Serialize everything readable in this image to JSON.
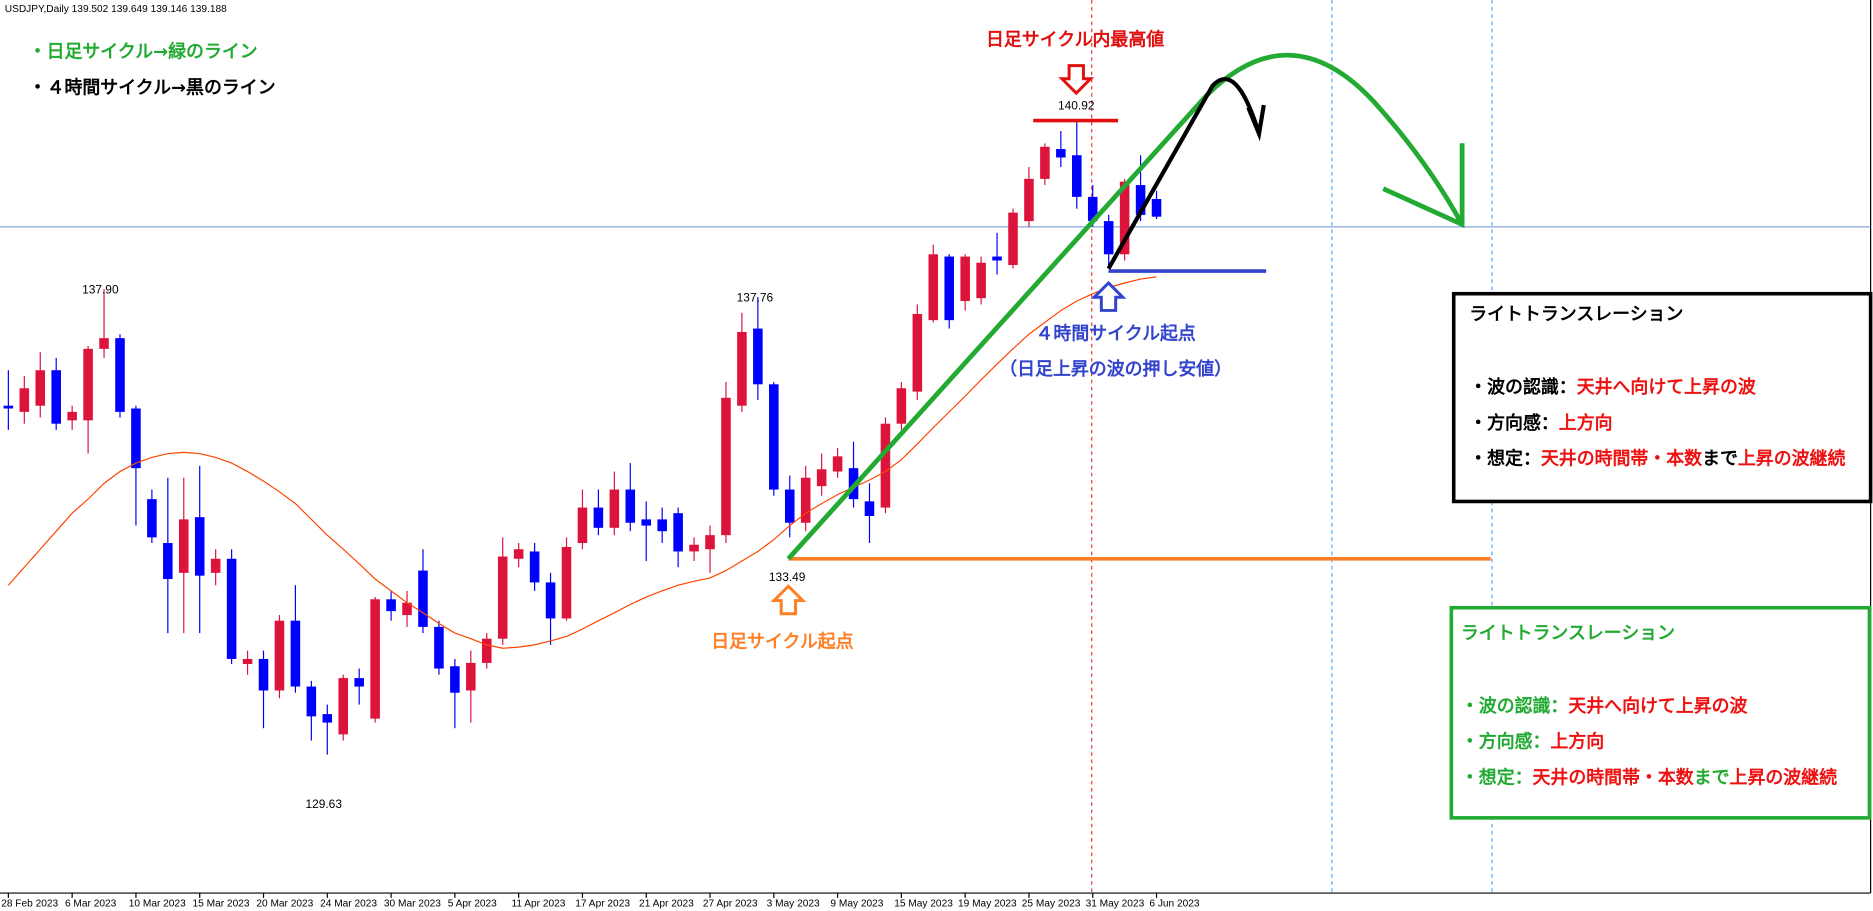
{
  "chart_data": {
    "type": "candlestick",
    "header": "USDJPY,Daily  139.502 139.649 139.146 139.188",
    "x": [
      "28 Feb 2023",
      null,
      null,
      null,
      "6 Mar 2023",
      null,
      null,
      null,
      "10 Mar 2023",
      null,
      null,
      null,
      "15 Mar 2023",
      null,
      null,
      null,
      "20 Mar 2023",
      null,
      null,
      null,
      "24 Mar 2023",
      null,
      null,
      null,
      "30 Mar 2023",
      null,
      null,
      null,
      "5 Apr 2023",
      null,
      null,
      null,
      "11 Apr 2023",
      null,
      null,
      null,
      "17 Apr 2023",
      null,
      null,
      null,
      "21 Apr 2023",
      null,
      null,
      null,
      "27 Apr 2023",
      null,
      null,
      null,
      "3 May 2023",
      null,
      null,
      null,
      "9 May 2023",
      null,
      null,
      null,
      "15 May 2023",
      null,
      null,
      null,
      "19 May 2023",
      null,
      null,
      null,
      "25 May 2023",
      null,
      null,
      null,
      "31 May 2023",
      null,
      null,
      null,
      "6 Jun 2023"
    ],
    "open": [
      135.83,
      135.72,
      135.83,
      136.46,
      135.57,
      135.57,
      136.84,
      137.03,
      135.78,
      134.17,
      133.39,
      132.86,
      133.85,
      132.86,
      133.11,
      131.24,
      131.33,
      130.77,
      132.01,
      130.84,
      130.35,
      129.99,
      130.99,
      130.27,
      132.39,
      132.11,
      132.9,
      131.9,
      131.2,
      130.77,
      131.26,
      131.69,
      133.11,
      133.24,
      132.69,
      132.05,
      133.39,
      134.02,
      133.66,
      134.34,
      133.81,
      133.81,
      133.92,
      133.24,
      133.28,
      133.53,
      135.83,
      137.2,
      136.21,
      134.34,
      133.75,
      134.4,
      134.66,
      134.72,
      134.13,
      134.02,
      135.51,
      136.08,
      137.35,
      138.48,
      137.69,
      137.74,
      138.48,
      138.33,
      139.11,
      139.86,
      140.39,
      140.28,
      139.54,
      139.11,
      138.52,
      139.75,
      139.502
    ],
    "high": [
      136.46,
      136.36,
      136.78,
      136.68,
      135.83,
      136.89,
      137.9,
      137.1,
      135.83,
      134.34,
      134.55,
      134.55,
      134.76,
      133.28,
      133.28,
      131.48,
      131.48,
      132.11,
      132.64,
      130.94,
      130.52,
      131.05,
      131.16,
      132.43,
      132.54,
      132.54,
      133.28,
      132.01,
      131.33,
      131.48,
      131.79,
      133.49,
      133.39,
      133.39,
      132.86,
      133.49,
      134.34,
      134.34,
      134.66,
      134.81,
      134.13,
      134.02,
      134.02,
      133.49,
      133.7,
      136.25,
      137.48,
      137.76,
      136.25,
      134.59,
      134.76,
      134.98,
      135.08,
      135.19,
      134.45,
      135.62,
      136.25,
      137.63,
      138.69,
      138.52,
      138.52,
      138.48,
      138.9,
      139.33,
      140.07,
      140.49,
      140.71,
      140.92,
      139.75,
      139.22,
      139.86,
      140.28,
      139.649
    ],
    "low": [
      135.4,
      135.51,
      135.62,
      135.4,
      135.4,
      134.98,
      136.68,
      135.62,
      133.7,
      133.39,
      131.79,
      131.79,
      131.79,
      132.64,
      131.24,
      131.05,
      130.1,
      130.63,
      130.73,
      129.88,
      129.63,
      129.88,
      130.52,
      130.2,
      132.01,
      131.9,
      131.79,
      131.05,
      130.1,
      130.2,
      131.16,
      131.58,
      132.96,
      132.54,
      131.58,
      132.01,
      133.28,
      133.53,
      133.53,
      133.6,
      133.07,
      133.39,
      132.96,
      133.07,
      132.86,
      133.39,
      135.72,
      135.93,
      134.23,
      133.49,
      133.6,
      134.23,
      134.55,
      134.02,
      133.39,
      133.92,
      135.4,
      135.93,
      137.31,
      137.2,
      137.52,
      137.63,
      138.16,
      138.27,
      139.01,
      139.75,
      140.07,
      139.33,
      139.01,
      138.27,
      138.41,
      139.11,
      139.146
    ],
    "close": [
      135.78,
      136.14,
      136.46,
      135.51,
      135.72,
      136.84,
      137.03,
      135.72,
      134.72,
      133.49,
      132.75,
      133.81,
      132.81,
      133.11,
      131.33,
      131.33,
      130.77,
      132.01,
      130.84,
      130.31,
      130.2,
      130.99,
      130.84,
      132.39,
      132.18,
      132.33,
      131.9,
      131.16,
      130.73,
      131.26,
      131.69,
      133.15,
      133.28,
      132.69,
      132.05,
      133.32,
      134.02,
      133.66,
      134.34,
      133.75,
      133.7,
      133.6,
      133.24,
      133.36,
      133.53,
      135.97,
      137.14,
      136.21,
      134.34,
      133.75,
      134.55,
      134.7,
      134.93,
      134.17,
      133.87,
      135.51,
      136.14,
      137.46,
      138.52,
      137.35,
      138.48,
      138.37,
      138.41,
      139.26,
      139.86,
      140.43,
      140.24,
      139.54,
      139.11,
      138.52,
      139.81,
      139.22,
      139.188
    ],
    "ma": [
      132.64,
      132.96,
      133.28,
      133.6,
      133.92,
      134.17,
      134.45,
      134.66,
      134.81,
      134.91,
      134.98,
      135.0,
      134.98,
      134.91,
      134.81,
      134.66,
      134.49,
      134.3,
      134.09,
      133.81,
      133.53,
      133.28,
      133.02,
      132.75,
      132.54,
      132.33,
      132.15,
      131.96,
      131.79,
      131.69,
      131.58,
      131.52,
      131.54,
      131.58,
      131.65,
      131.73,
      131.86,
      132.01,
      132.15,
      132.3,
      132.43,
      132.54,
      132.64,
      132.71,
      132.77,
      132.9,
      133.07,
      133.24,
      133.45,
      133.7,
      133.92,
      134.09,
      134.25,
      134.38,
      134.51,
      134.66,
      134.87,
      135.15,
      135.44,
      135.72,
      136.0,
      136.29,
      136.57,
      136.84,
      137.1,
      137.31,
      137.52,
      137.69,
      137.82,
      137.93,
      138.01,
      138.08,
      138.12
    ],
    "up_color": "#dc143c",
    "down_color": "#0000ff",
    "ma_color": "#ff4500",
    "ylim": [
      127.17,
      142.72
    ],
    "price_labels": [
      "137.90",
      "129.63",
      "137.76",
      "133.49",
      "140.92"
    ],
    "notes": [
      {
        "text": "・日足サイクル→緑のライン",
        "color": "#22aa33"
      },
      {
        "text": "・４時間サイクル→黒のライン",
        "color": "#000000"
      }
    ],
    "annotations": {
      "peak": "日足サイクル内最高値",
      "h4_start": "４時間サイクル起点",
      "h4_sub": "（日足上昇の波の押し安値）",
      "daily_start": "日足サイクル起点"
    },
    "boxes": [
      {
        "title": "ライトトランスレーション",
        "title_color": "#000000",
        "lines": [
          [
            {
              "text": "・波の認識：",
              "color": "#000000"
            },
            {
              "text": "天井へ向けて上昇の波",
              "color": "#ee1111"
            }
          ],
          [
            {
              "text": "・方向感：",
              "color": "#000000"
            },
            {
              "text": "上方向",
              "color": "#ee1111"
            }
          ],
          [
            {
              "text": "・想定：",
              "color": "#000000"
            },
            {
              "text": "天井の時間帯・本数",
              "color": "#ee1111"
            },
            {
              "text": "まで",
              "color": "#000000"
            },
            {
              "text": "上昇の波継続",
              "color": "#ee1111"
            }
          ]
        ]
      },
      {
        "title": "ライトトランスレーション",
        "title_color": "#22aa33",
        "lines": [
          [
            {
              "text": "・波の認識：",
              "color": "#22aa33"
            },
            {
              "text": "天井へ向けて上昇の波",
              "color": "#ee1111"
            }
          ],
          [
            {
              "text": "・方向感：",
              "color": "#22aa33"
            },
            {
              "text": "上方向",
              "color": "#ee1111"
            }
          ],
          [
            {
              "text": "・想定：",
              "color": "#22aa33"
            },
            {
              "text": "天井の時間帯・本数",
              "color": "#ee1111"
            },
            {
              "text": "まで",
              "color": "#22aa33"
            },
            {
              "text": "上昇の波継続",
              "color": "#ee1111"
            }
          ]
        ]
      }
    ]
  }
}
